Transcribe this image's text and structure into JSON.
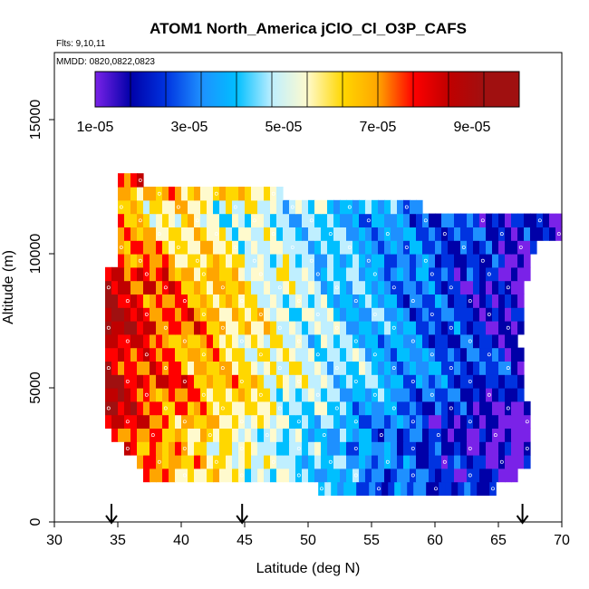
{
  "chart_data": {
    "type": "heatmap",
    "title": "ATOM1 North_America jClO_Cl_O3P_CAFS",
    "flights_text": "Flts: 9,10,11",
    "dates_text": "MMDD: 0820,0822,0823",
    "xlabel": "Latitude (deg N)",
    "ylabel": "Altitude (m)",
    "xlim": [
      30,
      70
    ],
    "ylim": [
      0,
      17500
    ],
    "x_ticks": [
      {
        "value": 30,
        "label": "30"
      },
      {
        "value": 35,
        "label": "35"
      },
      {
        "value": 40,
        "label": "40"
      },
      {
        "value": 45,
        "label": "45"
      },
      {
        "value": 50,
        "label": "50"
      },
      {
        "value": 55,
        "label": "55"
      },
      {
        "value": 60,
        "label": "60"
      },
      {
        "value": 65,
        "label": "65"
      },
      {
        "value": 70,
        "label": "70"
      }
    ],
    "y_ticks": [
      {
        "value": 0,
        "label": "0"
      },
      {
        "value": 5000,
        "label": "5000"
      },
      {
        "value": 10000,
        "label": "10000"
      },
      {
        "value": 15000,
        "label": "15000"
      }
    ],
    "colorbar": {
      "range": [
        1e-05,
        0.0001
      ],
      "tick_labels": [
        {
          "value": 1e-05,
          "label": "1e-05"
        },
        {
          "value": 3e-05,
          "label": "3e-05"
        },
        {
          "value": 5e-05,
          "label": "5e-05"
        },
        {
          "value": 7e-05,
          "label": "7e-05"
        },
        {
          "value": 9e-05,
          "label": "9e-05"
        }
      ],
      "colors": [
        "#7a22e8",
        "#0000a8",
        "#0033e0",
        "#1e90ff",
        "#00bfff",
        "#bfefff",
        "#fffacd",
        "#ffd700",
        "#ffa500",
        "#ff0000",
        "#c00000",
        "#a01010"
      ]
    },
    "arrow_latitudes": [
      34.5,
      44.8,
      66.9
    ],
    "grid_cells": {
      "lat_start": 34.0,
      "lat_step": 0.5,
      "alt_step": 500,
      "rows": [
        {
          "alt": 1000,
          "lat_from": 50.8,
          "lat_to": 65.0,
          "v_from": 4e-05,
          "v_to": 2.2e-05
        },
        {
          "alt": 1500,
          "lat_from": 37.0,
          "lat_to": 66.5,
          "v_from": 7.5e-05,
          "v_to": 1.6e-05
        },
        {
          "alt": 2000,
          "lat_from": 36.5,
          "lat_to": 67.5,
          "v_from": 8e-05,
          "v_to": 1.5e-05
        },
        {
          "alt": 2500,
          "lat_from": 35.5,
          "lat_to": 67.5,
          "v_from": 8.2e-05,
          "v_to": 1.2e-05
        },
        {
          "alt": 3000,
          "lat_from": 34.5,
          "lat_to": 67.5,
          "v_from": 8.5e-05,
          "v_to": 1.1e-05
        },
        {
          "alt": 3500,
          "lat_from": 34.0,
          "lat_to": 67.5,
          "v_from": 9e-05,
          "v_to": 1.1e-05
        },
        {
          "alt": 4000,
          "lat_from": 34.0,
          "lat_to": 67.5,
          "v_from": 9.2e-05,
          "v_to": 1.3e-05
        },
        {
          "alt": 4500,
          "lat_from": 34.0,
          "lat_to": 67.0,
          "v_from": 9e-05,
          "v_to": 1.8e-05
        },
        {
          "alt": 5000,
          "lat_from": 34.0,
          "lat_to": 67.0,
          "v_from": 9.5e-05,
          "v_to": 2e-05
        },
        {
          "alt": 5500,
          "lat_from": 34.0,
          "lat_to": 67.0,
          "v_from": 8.8e-05,
          "v_to": 2.5e-05
        },
        {
          "alt": 6000,
          "lat_from": 34.0,
          "lat_to": 67.0,
          "v_from": 9e-05,
          "v_to": 2.2e-05
        },
        {
          "alt": 6500,
          "lat_from": 34.0,
          "lat_to": 66.5,
          "v_from": 8.9e-05,
          "v_to": 2e-05
        },
        {
          "alt": 7000,
          "lat_from": 34.0,
          "lat_to": 67.0,
          "v_from": 9.5e-05,
          "v_to": 1.9e-05
        },
        {
          "alt": 7500,
          "lat_from": 34.0,
          "lat_to": 67.0,
          "v_from": 9.3e-05,
          "v_to": 1.8e-05
        },
        {
          "alt": 8000,
          "lat_from": 34.0,
          "lat_to": 67.0,
          "v_from": 9e-05,
          "v_to": 1.7e-05
        },
        {
          "alt": 8500,
          "lat_from": 34.0,
          "lat_to": 67.0,
          "v_from": 9.2e-05,
          "v_to": 1.6e-05
        },
        {
          "alt": 9000,
          "lat_from": 34.0,
          "lat_to": 67.5,
          "v_from": 9e-05,
          "v_to": 1.8e-05
        },
        {
          "alt": 9500,
          "lat_from": 35.0,
          "lat_to": 67.5,
          "v_from": 8e-05,
          "v_to": 1.9e-05
        },
        {
          "alt": 10000,
          "lat_from": 35.0,
          "lat_to": 68.0,
          "v_from": 7.8e-05,
          "v_to": 2e-05
        },
        {
          "alt": 10500,
          "lat_from": 35.0,
          "lat_to": 70.0,
          "v_from": 7.5e-05,
          "v_to": 1.9e-05
        },
        {
          "alt": 11000,
          "lat_from": 35.0,
          "lat_to": 70.0,
          "v_from": 7e-05,
          "v_to": 1.8e-05
        },
        {
          "alt": 11500,
          "lat_from": 35.0,
          "lat_to": 59.0,
          "v_from": 7e-05,
          "v_to": 3.8e-05
        },
        {
          "alt": 12000,
          "lat_from": 35.0,
          "lat_to": 48.0,
          "v_from": 7.2e-05,
          "v_to": 6.4e-05
        },
        {
          "alt": 12500,
          "lat_from": 35.0,
          "lat_to": 37.0,
          "v_from": 8.5e-05,
          "v_to": 8.5e-05
        }
      ]
    }
  }
}
